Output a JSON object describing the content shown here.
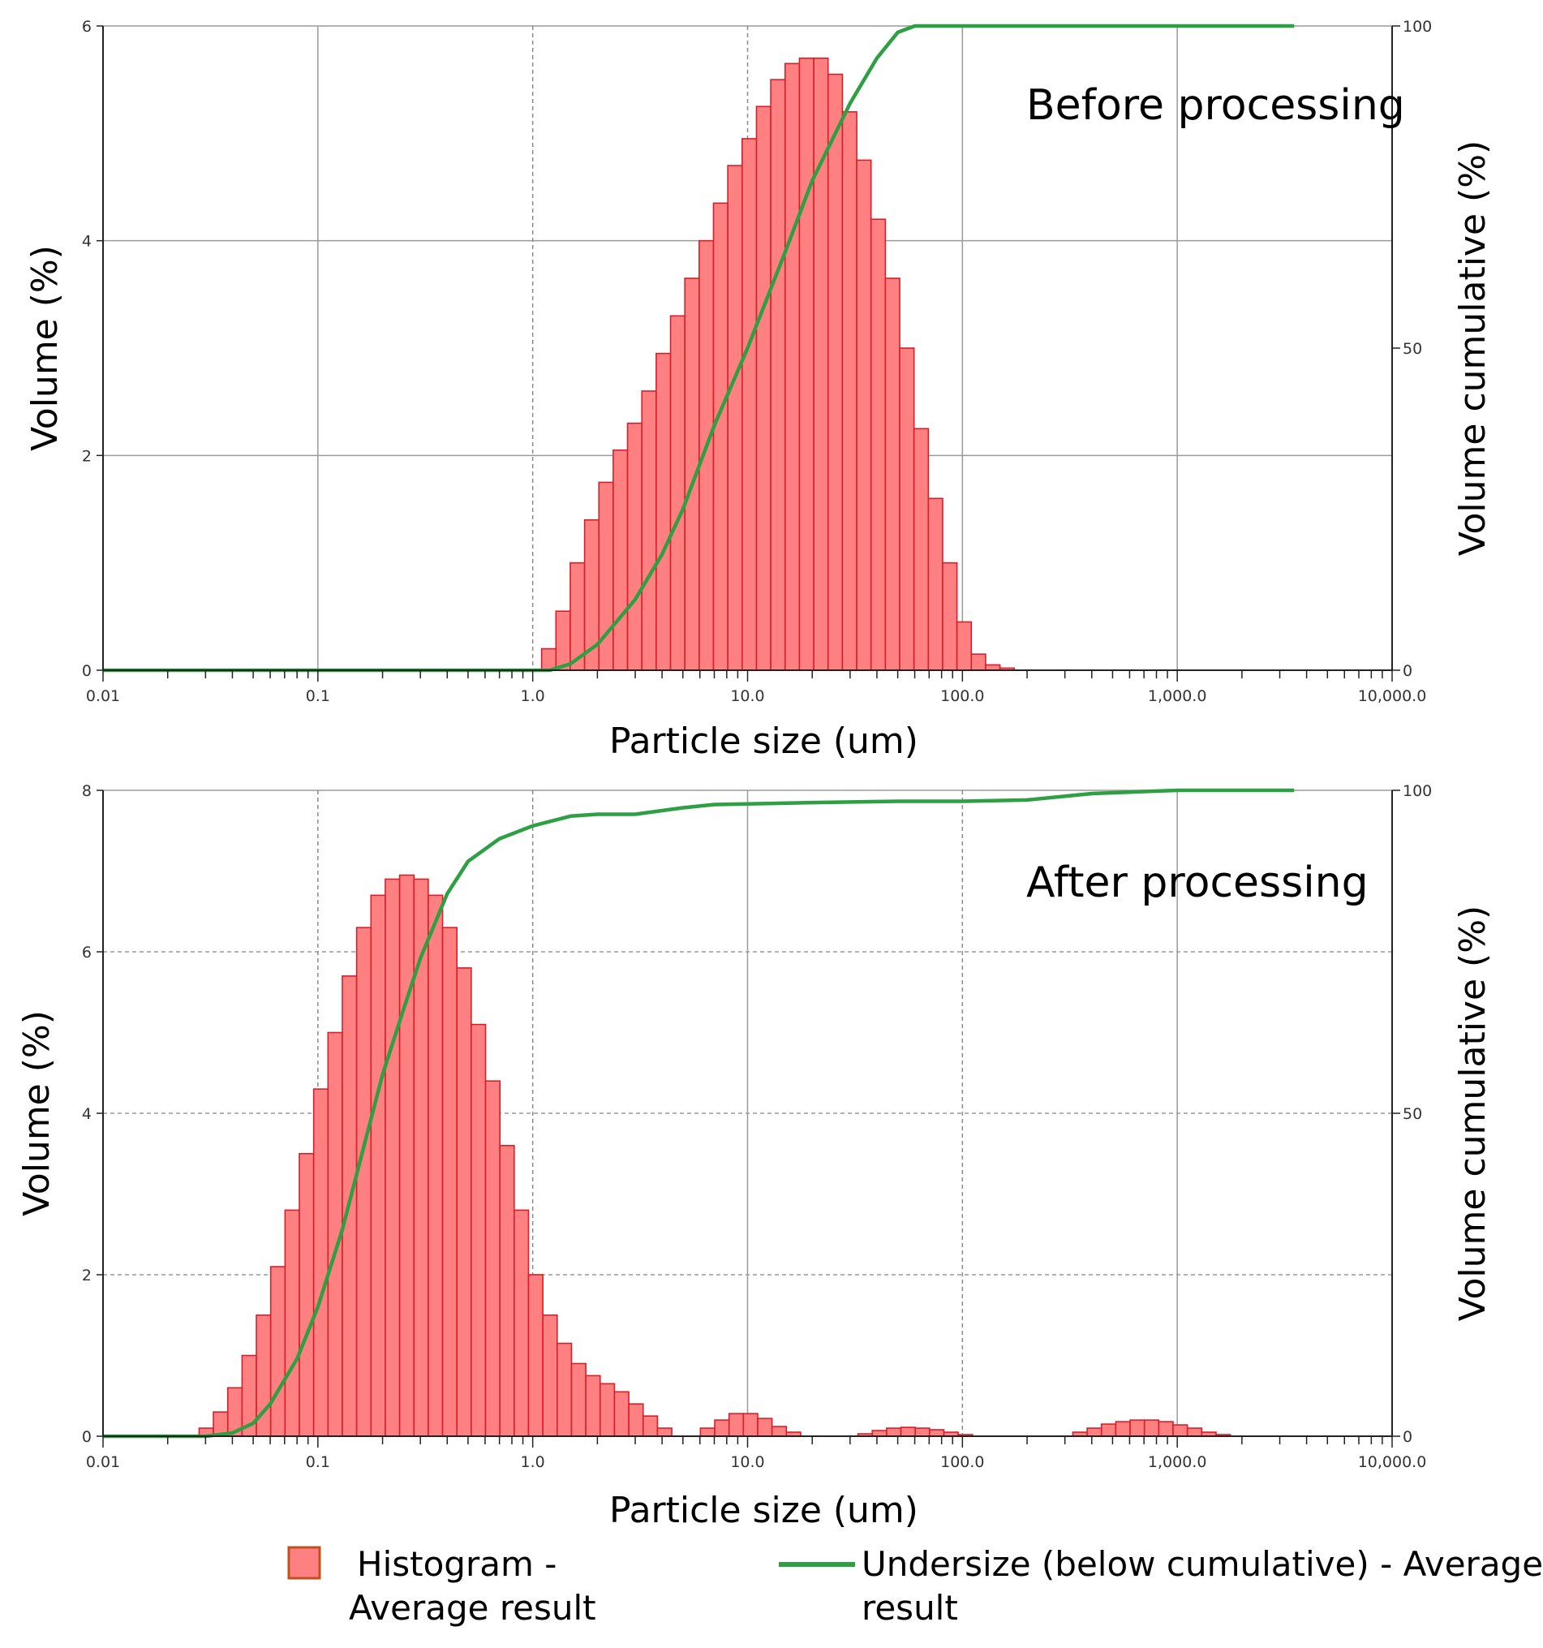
{
  "chart_data": [
    {
      "type": "bar",
      "annotation": "Before processing",
      "xlabel": "Particle size (um)",
      "ylabel": "Volume (%)",
      "y2label": "Volume cumulative (%)",
      "xscale": "log",
      "xlim": [
        0.01,
        10000
      ],
      "ylim": [
        0,
        6
      ],
      "y2lim": [
        0,
        100
      ],
      "xticks": [
        {
          "v": 0.01,
          "label": "0.01"
        },
        {
          "v": 0.1,
          "label": "0.1"
        },
        {
          "v": 1,
          "label": "1.0"
        },
        {
          "v": 10,
          "label": "10.0"
        },
        {
          "v": 100,
          "label": "100.0"
        },
        {
          "v": 1000,
          "label": "1,000.0"
        },
        {
          "v": 10000,
          "label": "10,000.0"
        }
      ],
      "yticks": [
        0,
        2,
        4,
        6
      ],
      "y2ticks": [
        0,
        50,
        100
      ],
      "grid": {
        "solid_x": [
          0.1,
          100,
          1000
        ],
        "dashed_x": [
          1,
          10
        ],
        "y": [
          2,
          4,
          6
        ],
        "y_dashed": false
      },
      "series": [
        {
          "name": "Histogram - Average result",
          "kind": "histogram",
          "color": "#ff8080",
          "edge_color": "#d81e2a",
          "bins_per_decade": 15,
          "bin_start": 1.1,
          "values": [
            0.2,
            0.55,
            1.0,
            1.4,
            1.75,
            2.05,
            2.3,
            2.6,
            2.95,
            3.3,
            3.65,
            4.0,
            4.35,
            4.7,
            4.95,
            5.25,
            5.5,
            5.65,
            5.7,
            5.7,
            5.55,
            5.2,
            4.75,
            4.2,
            3.65,
            3.0,
            2.25,
            1.6,
            1.0,
            0.45,
            0.15,
            0.05,
            0.02
          ]
        },
        {
          "name": "Undersize (below cumulative) - Average result",
          "kind": "line",
          "axis": "y2",
          "color": "#2ea043",
          "points": [
            [
              0.01,
              0
            ],
            [
              1.2,
              0
            ],
            [
              1.5,
              1
            ],
            [
              2,
              4
            ],
            [
              3,
              11
            ],
            [
              4,
              18
            ],
            [
              5,
              25
            ],
            [
              7,
              38
            ],
            [
              10,
              50
            ],
            [
              15,
              65
            ],
            [
              20,
              76
            ],
            [
              30,
              88
            ],
            [
              40,
              95
            ],
            [
              50,
              99
            ],
            [
              60,
              100
            ],
            [
              3500,
              100
            ]
          ]
        }
      ]
    },
    {
      "type": "bar",
      "annotation": "After processing",
      "xlabel": "Particle size (um)",
      "ylabel": "Volume (%)",
      "y2label": "Volume cumulative (%)",
      "xscale": "log",
      "xlim": [
        0.01,
        10000
      ],
      "ylim": [
        0,
        8
      ],
      "y2lim": [
        0,
        100
      ],
      "xticks": [
        {
          "v": 0.01,
          "label": "0.01"
        },
        {
          "v": 0.1,
          "label": "0.1"
        },
        {
          "v": 1,
          "label": "1.0"
        },
        {
          "v": 10,
          "label": "10.0"
        },
        {
          "v": 100,
          "label": "100.0"
        },
        {
          "v": 1000,
          "label": "1,000.0"
        },
        {
          "v": 10000,
          "label": "10,000.0"
        }
      ],
      "yticks": [
        0,
        2,
        4,
        6,
        8
      ],
      "y2ticks": [
        0,
        50,
        100
      ],
      "grid": {
        "solid_x": [
          10,
          1000
        ],
        "dashed_x": [
          0.1,
          1,
          100
        ],
        "y": [
          2,
          4,
          6,
          8
        ],
        "y_dashed": true
      },
      "series": [
        {
          "name": "Histogram - Average result",
          "kind": "histogram",
          "color": "#ff8080",
          "edge_color": "#d81e2a",
          "bins_per_decade": 15,
          "bin_start": 0.028,
          "values": [
            0.1,
            0.3,
            0.6,
            1.0,
            1.5,
            2.1,
            2.8,
            3.5,
            4.3,
            5.0,
            5.7,
            6.3,
            6.7,
            6.9,
            6.95,
            6.9,
            6.7,
            6.3,
            5.8,
            5.1,
            4.4,
            3.6,
            2.8,
            2.0,
            1.5,
            1.15,
            0.9,
            0.75,
            0.65,
            0.55,
            0.4,
            0.25,
            0.1,
            0,
            0,
            0.1,
            0.2,
            0.28,
            0.28,
            0.22,
            0.12,
            0.05,
            0,
            0,
            0,
            0,
            0.03,
            0.07,
            0.1,
            0.11,
            0.1,
            0.08,
            0.05,
            0.02,
            0,
            0,
            0,
            0,
            0,
            0,
            0,
            0.05,
            0.1,
            0.15,
            0.18,
            0.2,
            0.2,
            0.18,
            0.14,
            0.1,
            0.05,
            0.02
          ]
        },
        {
          "name": "Undersize (below cumulative) - Average result",
          "kind": "line",
          "axis": "y2",
          "color": "#2ea043",
          "points": [
            [
              0.01,
              0
            ],
            [
              0.03,
              0
            ],
            [
              0.04,
              0.5
            ],
            [
              0.05,
              2
            ],
            [
              0.06,
              5
            ],
            [
              0.08,
              12
            ],
            [
              0.1,
              20
            ],
            [
              0.13,
              32
            ],
            [
              0.17,
              47
            ],
            [
              0.2,
              56
            ],
            [
              0.25,
              66
            ],
            [
              0.3,
              74
            ],
            [
              0.4,
              84
            ],
            [
              0.5,
              89
            ],
            [
              0.7,
              92.5
            ],
            [
              1,
              94.5
            ],
            [
              1.5,
              96
            ],
            [
              2,
              96.3
            ],
            [
              3,
              96.3
            ],
            [
              5,
              97.3
            ],
            [
              7,
              97.8
            ],
            [
              10,
              97.9
            ],
            [
              20,
              98.1
            ],
            [
              50,
              98.3
            ],
            [
              100,
              98.3
            ],
            [
              200,
              98.5
            ],
            [
              400,
              99.5
            ],
            [
              1000,
              100
            ],
            [
              3500,
              100
            ]
          ]
        }
      ]
    }
  ],
  "legend": {
    "histogram_line1": "Histogram -",
    "histogram_line2": "Average result",
    "cumulative_line1": "Undersize (below cumulative) - Average",
    "cumulative_line2": "result"
  }
}
